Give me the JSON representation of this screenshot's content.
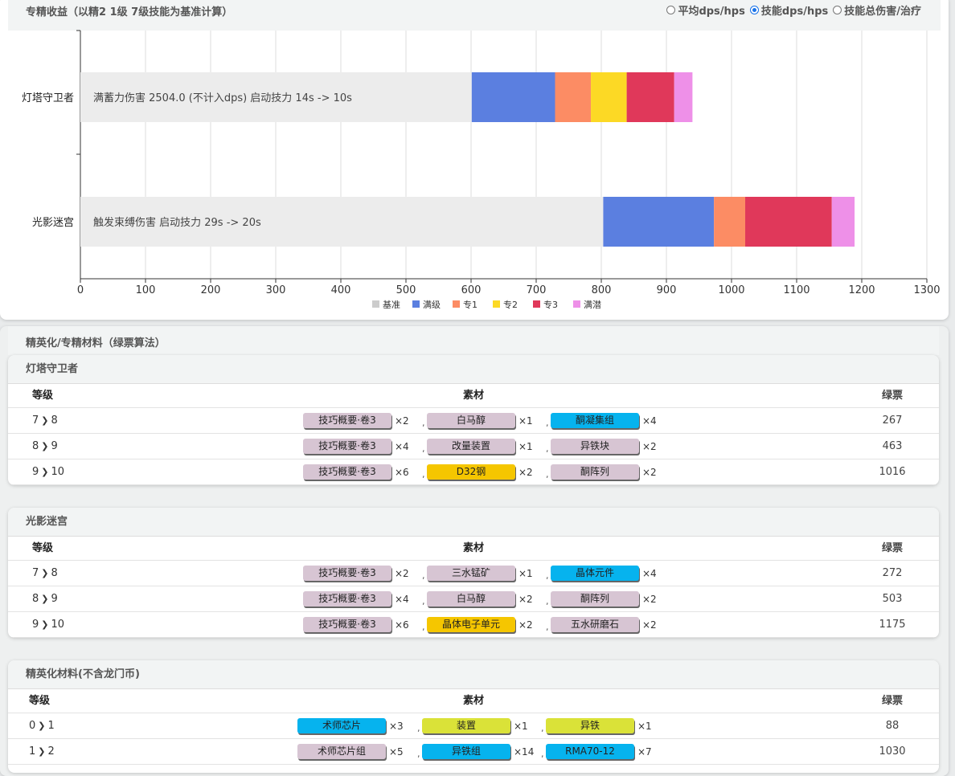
{
  "chart_panel": {
    "title": "专精收益（以精2 1级 7级技能为基准计算）",
    "radios": [
      {
        "label": "平均dps/hps",
        "selected": false
      },
      {
        "label": "技能dps/hps",
        "selected": true
      },
      {
        "label": "技能总伤害/治疗",
        "selected": false
      }
    ]
  },
  "chart_data": {
    "type": "bar",
    "orientation": "horizontal",
    "stacked": true,
    "categories": [
      "灯塔守卫者",
      "光影迷宫"
    ],
    "annotations": [
      "满蓄力伤害 2504.0 (不计入dps) 启动技力 14s -> 10s",
      "触发束缚伤害 启动技力 29s -> 20s"
    ],
    "series": [
      {
        "name": "基准",
        "color": "#ececec",
        "values": [
          601,
          803
        ]
      },
      {
        "name": "满级",
        "color": "#5b7fe0",
        "values": [
          128,
          170
        ]
      },
      {
        "name": "专1",
        "color": "#fc8c64",
        "values": [
          55,
          48
        ]
      },
      {
        "name": "专2",
        "color": "#fcd925",
        "values": [
          55,
          0
        ]
      },
      {
        "name": "专3",
        "color": "#e0385a",
        "values": [
          73,
          133
        ]
      },
      {
        "name": "满潜",
        "color": "#ee90e8",
        "values": [
          28,
          35
        ]
      }
    ],
    "xlim": [
      0,
      1300
    ],
    "xticks": [
      0,
      100,
      200,
      300,
      400,
      500,
      600,
      700,
      800,
      900,
      1000,
      1100,
      1200,
      1300
    ],
    "grid": true,
    "legend_position": "bottom"
  },
  "materials": {
    "title": "精英化/专精材料（绿票算法）",
    "header": {
      "level": "等级",
      "material": "素材",
      "ticket": "绿票"
    },
    "skills": [
      {
        "name": "灯塔守卫者",
        "rows": [
          {
            "from": "7",
            "to": "8",
            "ticket": "267",
            "items": [
              {
                "name": "技巧概要·卷3",
                "qty": "×2",
                "color": "gray"
              },
              {
                "name": "白马醇",
                "qty": "×1",
                "color": "gray"
              },
              {
                "name": "酮凝集组",
                "qty": "×4",
                "color": "blue"
              }
            ]
          },
          {
            "from": "8",
            "to": "9",
            "ticket": "463",
            "items": [
              {
                "name": "技巧概要·卷3",
                "qty": "×4",
                "color": "gray"
              },
              {
                "name": "改量装置",
                "qty": "×1",
                "color": "gray"
              },
              {
                "name": "异铁块",
                "qty": "×2",
                "color": "gray"
              }
            ]
          },
          {
            "from": "9",
            "to": "10",
            "ticket": "1016",
            "items": [
              {
                "name": "技巧概要·卷3",
                "qty": "×6",
                "color": "gray"
              },
              {
                "name": "D32钢",
                "qty": "×2",
                "color": "gold"
              },
              {
                "name": "酮阵列",
                "qty": "×2",
                "color": "gray"
              }
            ]
          }
        ]
      },
      {
        "name": "光影迷宫",
        "rows": [
          {
            "from": "7",
            "to": "8",
            "ticket": "272",
            "items": [
              {
                "name": "技巧概要·卷3",
                "qty": "×2",
                "color": "gray"
              },
              {
                "name": "三水锰矿",
                "qty": "×1",
                "color": "gray"
              },
              {
                "name": "晶体元件",
                "qty": "×4",
                "color": "blue"
              }
            ]
          },
          {
            "from": "8",
            "to": "9",
            "ticket": "503",
            "items": [
              {
                "name": "技巧概要·卷3",
                "qty": "×4",
                "color": "gray"
              },
              {
                "name": "白马醇",
                "qty": "×2",
                "color": "gray"
              },
              {
                "name": "酮阵列",
                "qty": "×2",
                "color": "gray"
              }
            ]
          },
          {
            "from": "9",
            "to": "10",
            "ticket": "1175",
            "items": [
              {
                "name": "技巧概要·卷3",
                "qty": "×6",
                "color": "gray"
              },
              {
                "name": "晶体电子单元",
                "qty": "×2",
                "color": "gold"
              },
              {
                "name": "五水研磨石",
                "qty": "×2",
                "color": "gray"
              }
            ]
          }
        ]
      }
    ]
  },
  "elite": {
    "title": "精英化材料(不含龙门币)",
    "header": {
      "level": "等级",
      "material": "素材",
      "ticket": "绿票"
    },
    "rows": [
      {
        "from": "0",
        "to": "1",
        "ticket": "88",
        "items": [
          {
            "name": "术师芯片",
            "qty": "×3",
            "color": "blue"
          },
          {
            "name": "装置",
            "qty": "×1",
            "color": "lime"
          },
          {
            "name": "异铁",
            "qty": "×1",
            "color": "lime"
          }
        ]
      },
      {
        "from": "1",
        "to": "2",
        "ticket": "1030",
        "items": [
          {
            "name": "术师芯片组",
            "qty": "×5",
            "color": "gray"
          },
          {
            "name": "异铁组",
            "qty": "×14",
            "color": "blue"
          },
          {
            "name": "RMA70-12",
            "qty": "×7",
            "color": "blue"
          }
        ]
      }
    ]
  }
}
